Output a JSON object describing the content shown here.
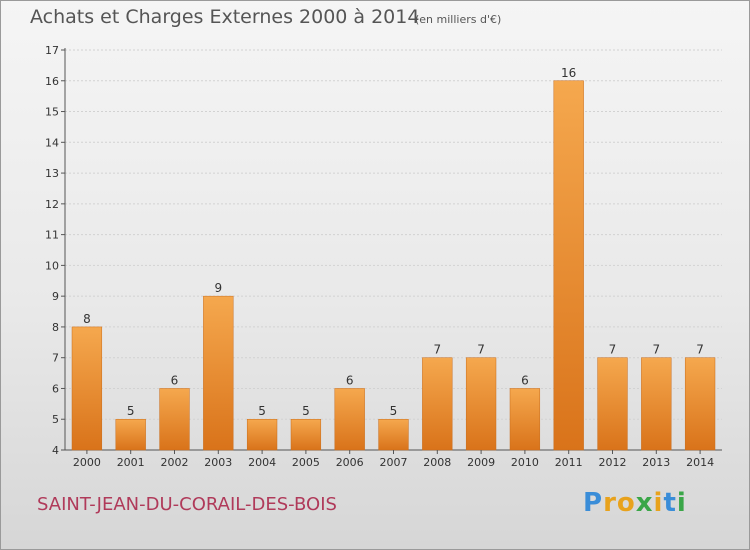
{
  "chart_data": {
    "type": "bar",
    "title": "Achats et Charges Externes 2000 à 2014",
    "unit_label": "(en milliers d'€)",
    "categories": [
      "2000",
      "2001",
      "2002",
      "2003",
      "2004",
      "2005",
      "2006",
      "2007",
      "2008",
      "2009",
      "2010",
      "2011",
      "2012",
      "2013",
      "2014"
    ],
    "values": [
      8,
      5,
      6,
      9,
      5,
      5,
      6,
      5,
      7,
      7,
      6,
      16,
      7,
      7,
      7
    ],
    "ylim": [
      4,
      17
    ],
    "yticks": [
      4,
      5,
      6,
      7,
      8,
      9,
      10,
      11,
      12,
      13,
      14,
      15,
      16,
      17
    ],
    "grid": true,
    "bar_color": "#f0922e",
    "xlabel": "",
    "ylabel": ""
  },
  "footer": {
    "commune": "SAINT-JEAN-DU-CORAIL-DES-BOIS",
    "brand": "Proxiti"
  },
  "colors": {
    "bar_light": "#f5a84e",
    "bar_dark": "#d9731a",
    "commune_text": "#b03a5a"
  }
}
